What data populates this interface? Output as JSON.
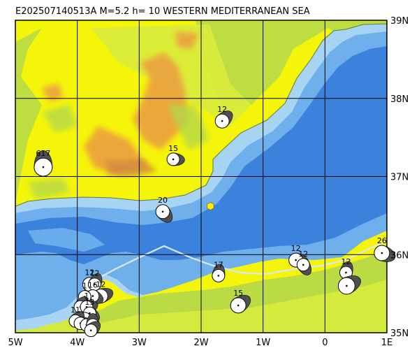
{
  "title": "E202507140513A M=5.2 h= 10 WESTERN MEDITERRANEAN SEA",
  "axes": {
    "x_ticks": [
      "5W",
      "4W",
      "3W",
      "2W",
      "1W",
      "0",
      "1E"
    ],
    "y_ticks": [
      "39N",
      "38N",
      "37N",
      "36N",
      "35N"
    ]
  },
  "map_data": {
    "lon_range": [
      -5,
      1
    ],
    "lat_range": [
      35,
      39
    ],
    "grid_step_deg": 1,
    "colors": {
      "land_yellow": "#f5f50a",
      "land_green": "#b4d84a",
      "land_lightgreen": "#d8ec3c",
      "land_orange": "#eba040",
      "land_brown": "#d48a3c",
      "sea_shallow": "#a8d4f4",
      "sea_mid": "#6fb0ec",
      "sea_deep": "#3a82dc",
      "grid": "#000000",
      "marker": "#ffee00"
    },
    "main_event": {
      "lon": -1.85,
      "lat": 36.62,
      "symbol": "hexagon"
    },
    "mechanisms": [
      {
        "lon": -4.55,
        "lat": 37.12,
        "size": 13,
        "label": "617"
      },
      {
        "lon": -1.66,
        "lat": 37.71,
        "size": 10,
        "label": "12"
      },
      {
        "lon": -2.45,
        "lat": 37.22,
        "size": 9,
        "label": "15"
      },
      {
        "lon": -2.62,
        "lat": 36.55,
        "size": 10,
        "label": "20"
      },
      {
        "lon": -1.72,
        "lat": 35.73,
        "size": 9,
        "label": "17"
      },
      {
        "lon": -1.4,
        "lat": 35.35,
        "size": 11,
        "label": "15"
      },
      {
        "lon": -0.47,
        "lat": 35.93,
        "size": 10,
        "label": "12"
      },
      {
        "lon": -0.35,
        "lat": 35.87,
        "size": 9,
        "label": "12"
      },
      {
        "lon": 0.34,
        "lat": 35.77,
        "size": 9,
        "label": "12"
      },
      {
        "lon": 0.35,
        "lat": 35.6,
        "size": 12,
        "label": ""
      },
      {
        "lon": 0.92,
        "lat": 36.02,
        "size": 11,
        "label": "26"
      },
      {
        "lon": -3.8,
        "lat": 35.62,
        "size": 10,
        "label": "12"
      },
      {
        "lon": -3.72,
        "lat": 35.62,
        "size": 9,
        "label": "12"
      },
      {
        "lon": -3.62,
        "lat": 35.47,
        "size": 10,
        "label": "12"
      },
      {
        "lon": -3.75,
        "lat": 35.47,
        "size": 9,
        "label": "16"
      },
      {
        "lon": -3.88,
        "lat": 35.46,
        "size": 9,
        "label": "1"
      },
      {
        "lon": -3.95,
        "lat": 35.33,
        "size": 9,
        "label": ""
      },
      {
        "lon": -3.85,
        "lat": 35.33,
        "size": 9,
        "label": "1"
      },
      {
        "lon": -3.8,
        "lat": 35.25,
        "size": 9,
        "label": "13"
      },
      {
        "lon": -3.88,
        "lat": 35.18,
        "size": 9,
        "label": ""
      },
      {
        "lon": -4.03,
        "lat": 35.15,
        "size": 9,
        "label": "11"
      },
      {
        "lon": -3.95,
        "lat": 35.12,
        "size": 9,
        "label": ""
      },
      {
        "lon": -3.85,
        "lat": 35.1,
        "size": 9,
        "label": ""
      },
      {
        "lon": -3.75,
        "lat": 35.1,
        "size": 9,
        "label": ""
      },
      {
        "lon": -3.78,
        "lat": 35.03,
        "size": 9,
        "label": ""
      }
    ]
  }
}
